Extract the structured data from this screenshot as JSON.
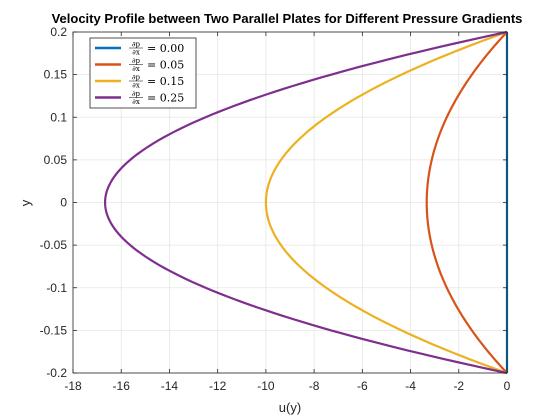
{
  "chart_data": {
    "type": "line",
    "title": "Velocity Profile between Two Parallel Plates for Different Pressure Gradients",
    "xlabel": "u(y)",
    "ylabel": "y",
    "xlim": [
      -18,
      0
    ],
    "ylim": [
      -0.2,
      0.2
    ],
    "xticks": [
      -18,
      -16,
      -14,
      -12,
      -10,
      -8,
      -6,
      -4,
      -2,
      0
    ],
    "yticks": [
      -0.2,
      -0.15,
      -0.1,
      -0.05,
      0,
      0.05,
      0.1,
      0.15,
      0.2
    ],
    "grid": true,
    "legend_position": "top-left",
    "y": [
      -0.2,
      -0.15,
      -0.1,
      -0.05,
      0,
      0.05,
      0.1,
      0.15,
      0.2
    ],
    "series": [
      {
        "name": "∂p/∂x = 0.00",
        "color": "#0072BD",
        "x": [
          0,
          0,
          0,
          0,
          0,
          0,
          0,
          0,
          0
        ]
      },
      {
        "name": "∂p/∂x = 0.05",
        "color": "#D95319",
        "x": [
          0,
          -1.46,
          -2.5,
          -3.13,
          -3.33,
          -3.13,
          -2.5,
          -1.46,
          0
        ]
      },
      {
        "name": "∂p/∂x = 0.15",
        "color": "#EDB120",
        "x": [
          0,
          -4.38,
          -7.5,
          -9.38,
          -10,
          -9.38,
          -7.5,
          -4.38,
          0
        ]
      },
      {
        "name": "∂p/∂x = 0.25",
        "color": "#7E2F8E",
        "x": [
          0,
          -7.29,
          -12.5,
          -15.63,
          -16.67,
          -15.63,
          -12.5,
          -7.29,
          0
        ]
      }
    ]
  }
}
